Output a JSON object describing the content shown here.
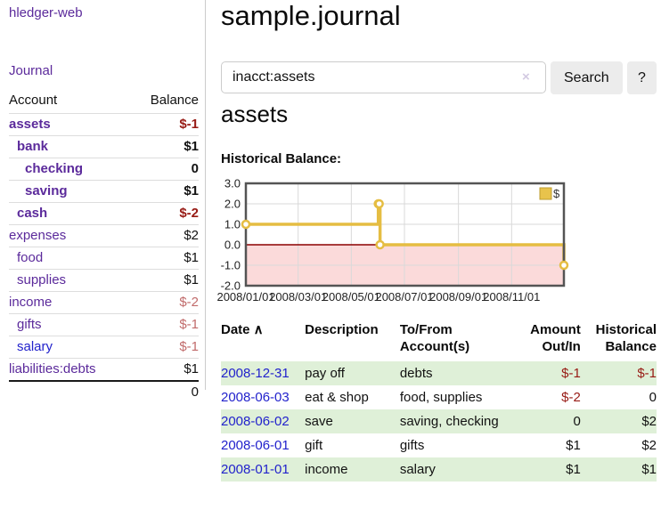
{
  "app": {
    "brand": "hledger-web",
    "nav_journal": "Journal"
  },
  "colors": {
    "link_purple": "#5b2a9b",
    "link_blue": "#2222cc",
    "neg_strong": "#971a14",
    "neg_weak": "#c16b6b",
    "row_green": "#dff0d8",
    "gold_line": "#e5bd42",
    "legend_fill": "#e8c34c",
    "legend_border": "#bd9c30",
    "pink_region": "#fbdada",
    "zero_line": "#8b0000",
    "grid": "#d9d9d9",
    "chart_border": "#545454"
  },
  "sidebar": {
    "header": {
      "account": "Account",
      "balance": "Balance"
    },
    "accounts": [
      {
        "name": "assets",
        "balance": "$-1",
        "depth": 1,
        "bold": true,
        "balance_style": "neg_strong",
        "link_style": "purple"
      },
      {
        "name": "bank",
        "balance": "$1",
        "depth": 2,
        "bold": true,
        "balance_style": "normal",
        "link_style": "purple"
      },
      {
        "name": "checking",
        "balance": "0",
        "depth": 3,
        "bold": true,
        "balance_style": "normal",
        "link_style": "purple"
      },
      {
        "name": "saving",
        "balance": "$1",
        "depth": 3,
        "bold": true,
        "balance_style": "normal",
        "link_style": "purple"
      },
      {
        "name": "cash",
        "balance": "$-2",
        "depth": 2,
        "bold": true,
        "balance_style": "neg_strong",
        "link_style": "purple"
      },
      {
        "name": "expenses",
        "balance": "$2",
        "depth": 1,
        "bold": false,
        "balance_style": "normal",
        "link_style": "purple"
      },
      {
        "name": "food",
        "balance": "$1",
        "depth": 2,
        "bold": false,
        "balance_style": "normal",
        "link_style": "purple"
      },
      {
        "name": "supplies",
        "balance": "$1",
        "depth": 2,
        "bold": false,
        "balance_style": "normal",
        "link_style": "purple"
      },
      {
        "name": "income",
        "balance": "$-2",
        "depth": 1,
        "bold": false,
        "balance_style": "neg_weak",
        "link_style": "purple"
      },
      {
        "name": "gifts",
        "balance": "$-1",
        "depth": 2,
        "bold": false,
        "balance_style": "neg_weak",
        "link_style": "purple"
      },
      {
        "name": "salary",
        "balance": "$-1",
        "depth": 2,
        "bold": false,
        "balance_style": "neg_weak",
        "link_style": "blue"
      },
      {
        "name": "liabilities:debts",
        "balance": "$1",
        "depth": 1,
        "bold": false,
        "balance_style": "normal",
        "link_style": "purple"
      }
    ],
    "total": "0"
  },
  "header": {
    "title": "sample.journal"
  },
  "search": {
    "value": "inacct:assets",
    "clear_icon": "×",
    "button_label": "Search",
    "help_label": "?"
  },
  "account_page": {
    "heading": "assets",
    "chart_label": "Historical Balance:"
  },
  "chart_data": {
    "type": "line",
    "style": "step",
    "title": "Historical Balance:",
    "legend": [
      {
        "label": "$"
      }
    ],
    "legend_position": "top-right",
    "grid": true,
    "ylim": [
      -2,
      3
    ],
    "y_ticks": [
      "3.0",
      "2.0",
      "1.0",
      "0.0",
      "-1.0",
      "-2.0"
    ],
    "xlim": [
      "2008-01-01",
      "2008-12-31"
    ],
    "x_ticks": [
      "2008/01/01",
      "2008/03/01",
      "2008/05/01",
      "2008/07/01",
      "2008/09/01",
      "2008/11/01"
    ],
    "series": [
      {
        "name": "$",
        "points": [
          {
            "x": "2008-01-01",
            "y": 1
          },
          {
            "x": "2008-06-01",
            "y": 2
          },
          {
            "x": "2008-06-02",
            "y": 2
          },
          {
            "x": "2008-06-03",
            "y": 0
          },
          {
            "x": "2008-12-31",
            "y": -1
          }
        ]
      }
    ],
    "negative_region_shaded": true
  },
  "register": {
    "sort_icon": "∧",
    "columns": [
      {
        "label": "Date",
        "align": "left",
        "sorted": true
      },
      {
        "label": "Description",
        "align": "left"
      },
      {
        "label": "To/From Account(s)",
        "align": "left"
      },
      {
        "label": "Amount Out/In",
        "align": "right"
      },
      {
        "label": "Historical Balance",
        "align": "right"
      }
    ],
    "rows": [
      {
        "date": "2008-12-31",
        "description": "pay off",
        "accounts": "debts",
        "amount": "$-1",
        "balance": "$-1"
      },
      {
        "date": "2008-06-03",
        "description": "eat & shop",
        "accounts": "food, supplies",
        "amount": "$-2",
        "balance": "0"
      },
      {
        "date": "2008-06-02",
        "description": "save",
        "accounts": "saving, checking",
        "amount": "0",
        "balance": "$2"
      },
      {
        "date": "2008-06-01",
        "description": "gift",
        "accounts": "gifts",
        "amount": "$1",
        "balance": "$2"
      },
      {
        "date": "2008-01-01",
        "description": "income",
        "accounts": "salary",
        "amount": "$1",
        "balance": "$1"
      }
    ]
  }
}
